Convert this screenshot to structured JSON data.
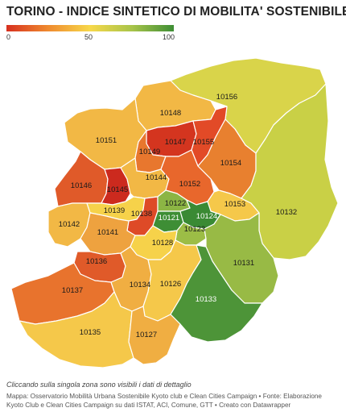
{
  "header": {
    "title": "TORINO - INDICE SINTETICO DI MOBILITA' SOSTENIBILE"
  },
  "legend": {
    "ticks": [
      "0",
      "50",
      "100"
    ],
    "colors": [
      "#d7301f",
      "#ef8a2f",
      "#f7d84a",
      "#a8c44a",
      "#3e8e35"
    ]
  },
  "zones": [
    {
      "cap": "10156",
      "color": "#d9d44a"
    },
    {
      "cap": "10148",
      "color": "#f2b845"
    },
    {
      "cap": "10151",
      "color": "#f2b845"
    },
    {
      "cap": "10147",
      "color": "#d4351f"
    },
    {
      "cap": "10155",
      "color": "#e24a27"
    },
    {
      "cap": "10149",
      "color": "#e8772e"
    },
    {
      "cap": "10154",
      "color": "#e8802f"
    },
    {
      "cap": "10146",
      "color": "#e05a29"
    },
    {
      "cap": "10145",
      "color": "#cc2a1e"
    },
    {
      "cap": "10144",
      "color": "#f2b845"
    },
    {
      "cap": "10152",
      "color": "#e8672c"
    },
    {
      "cap": "10153",
      "color": "#f5c84a"
    },
    {
      "cap": "10132",
      "color": "#c9d046"
    },
    {
      "cap": "10142",
      "color": "#f2b845"
    },
    {
      "cap": "10139",
      "color": "#f6d24a"
    },
    {
      "cap": "10138",
      "color": "#de4a27"
    },
    {
      "cap": "10122",
      "color": "#8cb544"
    },
    {
      "cap": "10121",
      "color": "#3e8e35"
    },
    {
      "cap": "10124",
      "color": "#3a8a34"
    },
    {
      "cap": "10123",
      "color": "#9cbd46"
    },
    {
      "cap": "10141",
      "color": "#eea23f"
    },
    {
      "cap": "10128",
      "color": "#f6d24a"
    },
    {
      "cap": "10131",
      "color": "#98ba45"
    },
    {
      "cap": "10136",
      "color": "#e05a29"
    },
    {
      "cap": "10137",
      "color": "#e8732d"
    },
    {
      "cap": "10134",
      "color": "#f0ae42"
    },
    {
      "cap": "10126",
      "color": "#f5c84a"
    },
    {
      "cap": "10133",
      "color": "#4d9438"
    },
    {
      "cap": "10135",
      "color": "#f5c84a"
    },
    {
      "cap": "10127",
      "color": "#f0ae42"
    }
  ],
  "footer": {
    "note": "Cliccando sulla singola zona sono visibili i dati di dettaglio",
    "source": "Mappa: Osservatorio Mobilità Urbana Sostenibile Kyoto club e Clean Cities Campaign • Fonte: Elaborazione Kyoto Club e Clean Cities Campaign su dati ISTAT, ACI, Comune, GTT • Creato con Datawrapper"
  }
}
